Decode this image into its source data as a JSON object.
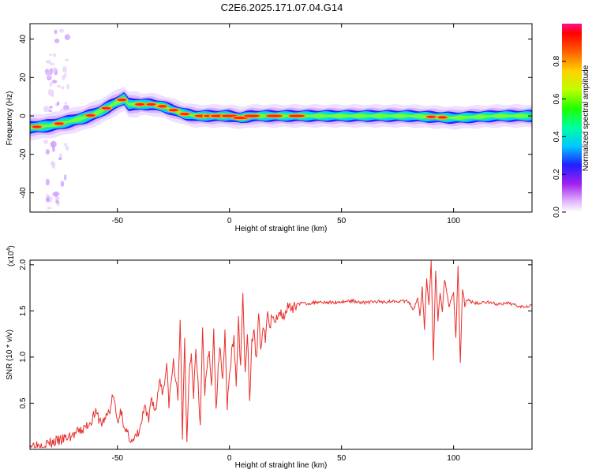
{
  "title": "C2E6.2025.171.07.04.G14",
  "chart_data": [
    {
      "type": "heatmap",
      "xlabel": "Height of straight line (km)",
      "ylabel": "Frequency (Hz)",
      "xlim": [
        -89,
        135
      ],
      "ylim": [
        -50,
        48
      ],
      "x_ticks": [
        -50,
        0,
        50,
        100
      ],
      "y_ticks": [
        40,
        20,
        0,
        -20,
        -40
      ],
      "colorbar": {
        "label": "Normalized spectral amplitude",
        "range": [
          0,
          1
        ],
        "ticks": [
          0.0,
          0.2,
          0.4,
          0.6,
          0.8
        ],
        "tick_labels": [
          "0.0",
          "0.2",
          "0.4",
          "0.6",
          "0.8"
        ]
      },
      "ridge": {
        "x": [
          -89,
          -80,
          -72,
          -65,
          -58,
          -52,
          -47,
          -45,
          -40,
          -35,
          -30,
          -25,
          -20,
          -15,
          -10,
          -5,
          0,
          5,
          10,
          20,
          30,
          50,
          80,
          100,
          120,
          135
        ],
        "y": [
          -6,
          -5,
          -3,
          -1,
          2,
          6,
          9,
          6,
          6,
          6,
          5,
          3,
          1,
          0,
          0,
          0,
          0,
          -1,
          0,
          0,
          0,
          0,
          0,
          -1,
          0,
          0
        ]
      }
    },
    {
      "type": "line",
      "xlabel": "Height of straight line (km)",
      "ylabel": "SNR (10 * v/v)",
      "scale_label": "(x10",
      "scale_exp": "4",
      "scale_close": ")",
      "xlim": [
        -89,
        135
      ],
      "ylim": [
        0,
        2.05
      ],
      "x_ticks": [
        -50,
        0,
        50,
        100
      ],
      "y_ticks": [
        0.5,
        1.0,
        1.5,
        2.0
      ],
      "y_tick_labels": [
        "0.5",
        "1.0",
        "1.5",
        "2.0"
      ],
      "color": "#e8302c",
      "series": [
        {
          "x": [
            -89,
            -85,
            -80,
            -75,
            -70,
            -65,
            -62,
            -60,
            -57,
            -55,
            -53,
            -52,
            -50,
            -48,
            -47,
            -45,
            -43,
            -42,
            -40,
            -38,
            -36,
            -35,
            -33,
            -31,
            -30,
            -28,
            -27,
            -25,
            -23,
            -22,
            -21,
            -20,
            -19,
            -18,
            -17,
            -16,
            -15,
            -14,
            -13,
            -12,
            -11,
            -10,
            -9,
            -8,
            -7,
            -6,
            -5,
            -4,
            -3,
            -2,
            -1,
            0,
            1,
            2,
            3,
            4,
            5,
            6,
            7,
            8,
            9,
            10,
            11,
            12,
            13,
            14,
            15,
            16,
            17,
            18,
            19,
            20,
            22,
            24,
            26,
            28,
            30,
            35,
            40,
            45,
            50,
            55,
            60,
            65,
            70,
            75,
            80,
            82,
            84,
            85,
            86,
            87,
            88,
            89,
            90,
            91,
            92,
            93,
            94,
            95,
            96,
            98,
            100,
            101,
            102,
            103,
            104,
            105,
            106,
            108,
            110,
            115,
            120,
            125,
            130,
            135
          ],
          "y": [
            0.05,
            0.05,
            0.07,
            0.1,
            0.15,
            0.22,
            0.3,
            0.4,
            0.28,
            0.35,
            0.45,
            0.6,
            0.3,
            0.45,
            0.2,
            0.15,
            0.08,
            0.12,
            0.2,
            0.45,
            0.3,
            0.58,
            0.4,
            0.8,
            0.6,
            0.9,
            0.5,
            0.95,
            0.55,
            1.45,
            0.1,
            1.2,
            0.05,
            0.85,
            1.05,
            0.6,
            1.1,
            0.75,
            0.25,
            1.3,
            0.6,
            0.9,
            1.05,
            0.7,
            1.25,
            0.4,
            0.95,
            1.1,
            0.75,
            1.3,
            0.45,
            0.8,
            1.05,
            1.2,
            0.7,
            1.4,
            0.9,
            1.7,
            0.8,
            1.25,
            0.5,
            1.15,
            1.35,
            0.95,
            1.45,
            1.1,
            1.3,
            1.2,
            1.5,
            1.3,
            1.45,
            1.35,
            1.5,
            1.45,
            1.55,
            1.5,
            1.58,
            1.58,
            1.6,
            1.59,
            1.6,
            1.61,
            1.59,
            1.6,
            1.6,
            1.61,
            1.6,
            1.5,
            1.65,
            1.45,
            1.75,
            1.3,
            1.85,
            1.55,
            2.05,
            0.96,
            1.95,
            1.4,
            1.7,
            1.5,
            1.85,
            1.55,
            1.7,
            1.2,
            2.0,
            0.93,
            1.75,
            1.55,
            1.62,
            1.6,
            1.58,
            1.6,
            1.57,
            1.58,
            1.55,
            1.56
          ]
        }
      ]
    }
  ]
}
